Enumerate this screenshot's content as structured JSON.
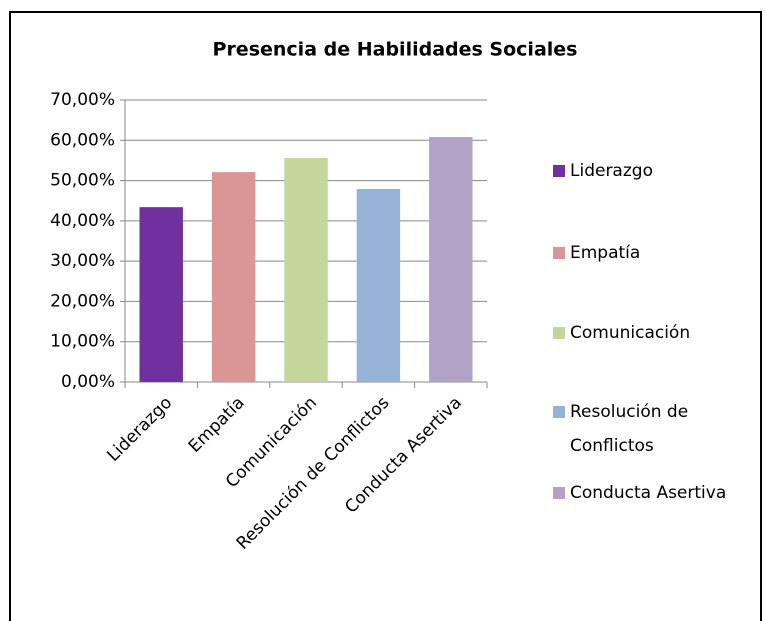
{
  "chart_data": {
    "type": "bar",
    "title": "Presencia de Habilidades Sociales",
    "categories": [
      "Liderazgo",
      "Empatía",
      "Comunicación",
      "Resolución de Conflictos",
      "Conducta Asertiva"
    ],
    "values": [
      43.4,
      52.1,
      55.6,
      47.9,
      60.8
    ],
    "colors": [
      "#7030a0",
      "#d99694",
      "#c3d69b",
      "#95b3d7",
      "#b3a2c7"
    ],
    "ylim": [
      0,
      70
    ],
    "yticks": [
      {
        "value": 0,
        "label": "0,00%"
      },
      {
        "value": 10,
        "label": "10,00%"
      },
      {
        "value": 20,
        "label": "20,00%"
      },
      {
        "value": 30,
        "label": "30,00%"
      },
      {
        "value": 40,
        "label": "40,00%"
      },
      {
        "value": 50,
        "label": "50,00%"
      },
      {
        "value": 60,
        "label": "60,00%"
      },
      {
        "value": 70,
        "label": "70,00%"
      }
    ],
    "grid": true,
    "legend": "right"
  }
}
